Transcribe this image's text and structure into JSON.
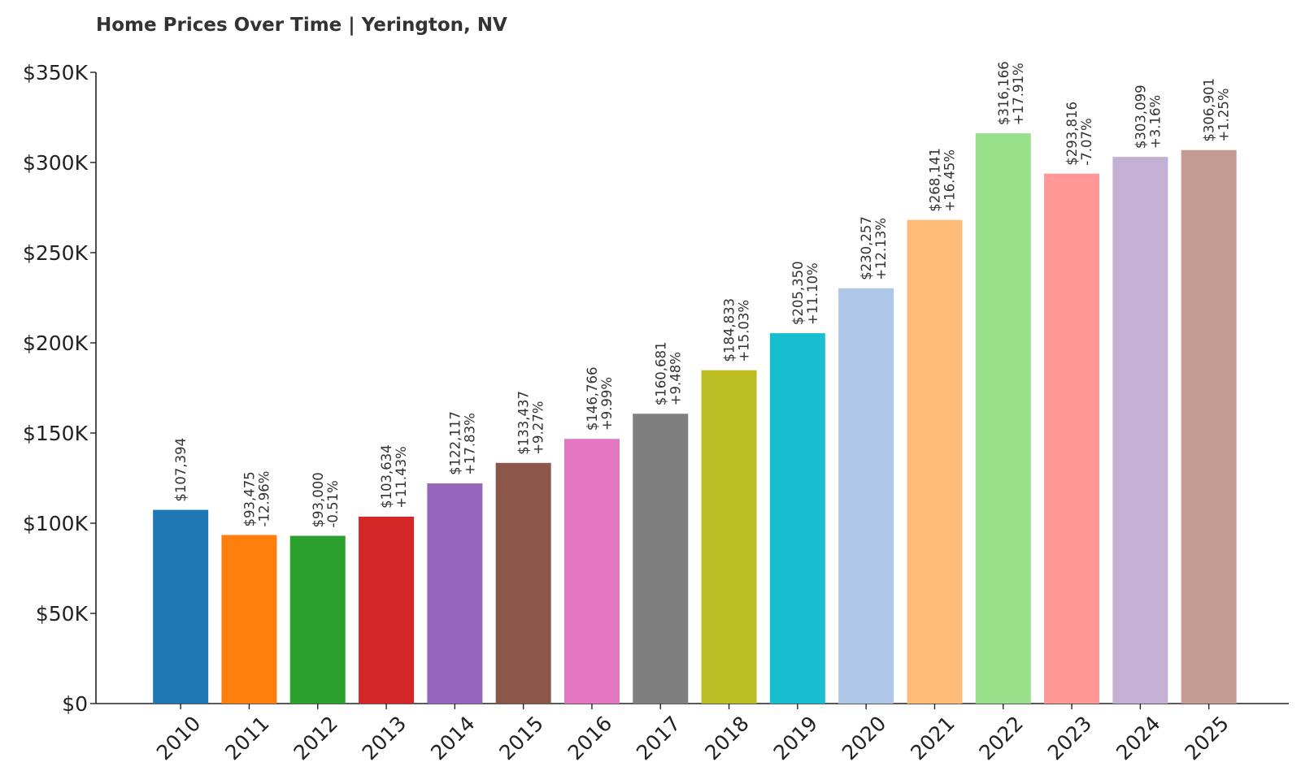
{
  "chart_data": {
    "type": "bar",
    "title": "Home Prices Over Time | Yerington, NV",
    "xlabel": "",
    "ylabel": "",
    "ylim": [
      0,
      350000
    ],
    "y_ticks": [
      {
        "value": 0,
        "label": "$0"
      },
      {
        "value": 50000,
        "label": "$50K"
      },
      {
        "value": 100000,
        "label": "$100K"
      },
      {
        "value": 150000,
        "label": "$150K"
      },
      {
        "value": 200000,
        "label": "$200K"
      },
      {
        "value": 250000,
        "label": "$250K"
      },
      {
        "value": 300000,
        "label": "$300K"
      },
      {
        "value": 350000,
        "label": "$350K"
      }
    ],
    "grid": false,
    "legend": "none",
    "categories": [
      "2010",
      "2011",
      "2012",
      "2013",
      "2014",
      "2015",
      "2016",
      "2017",
      "2018",
      "2019",
      "2020",
      "2021",
      "2022",
      "2023",
      "2024",
      "2025"
    ],
    "values": [
      107394,
      93475,
      93000,
      103634,
      122117,
      133437,
      146766,
      160681,
      184833,
      205350,
      230257,
      268141,
      316166,
      293816,
      303099,
      306901
    ],
    "value_labels": [
      "$107,394",
      "$93,475",
      "$93,000",
      "$103,634",
      "$122,117",
      "$133,437",
      "$146,766",
      "$160,681",
      "$184,833",
      "$205,350",
      "$230,257",
      "$268,141",
      "$316,166",
      "$293,816",
      "$303,099",
      "$306,901"
    ],
    "change_labels": [
      "",
      "-12.96%",
      "-0.51%",
      "+11.43%",
      "+17.83%",
      "+9.27%",
      "+9.99%",
      "+9.48%",
      "+15.03%",
      "+11.10%",
      "+12.13%",
      "+16.45%",
      "+17.91%",
      "-7.07%",
      "+3.16%",
      "+1.25%"
    ],
    "colors": [
      "#1f77b4",
      "#ff7f0e",
      "#2ca02c",
      "#d62728",
      "#9467bd",
      "#8c564b",
      "#e377c2",
      "#7f7f7f",
      "#bcbd22",
      "#17becf",
      "#aec7e8",
      "#ffbb78",
      "#98df8a",
      "#ff9896",
      "#c5b0d5",
      "#c49c94"
    ]
  }
}
